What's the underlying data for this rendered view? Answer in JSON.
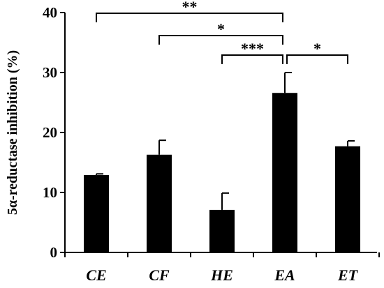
{
  "chart_data": {
    "type": "bar",
    "title": "",
    "xlabel": "",
    "ylabel": "5α-reductase inhibition (%)",
    "ylim": [
      0,
      40
    ],
    "yticks": [
      0,
      10,
      20,
      30,
      40
    ],
    "grid": false,
    "bar_color": "#000000",
    "categories": [
      "CE",
      "CF",
      "HE",
      "EA",
      "ET"
    ],
    "values": [
      12.9,
      16.3,
      7.1,
      26.6,
      17.7
    ],
    "errors": [
      0.2,
      2.4,
      2.8,
      3.4,
      0.9
    ],
    "significance": [
      {
        "from": "CE",
        "to": "EA",
        "label": "**"
      },
      {
        "from": "CF",
        "to": "EA",
        "label": "*"
      },
      {
        "from": "HE",
        "to": "EA",
        "label": "***"
      },
      {
        "from": "EA",
        "to": "ET",
        "label": "*"
      }
    ]
  }
}
